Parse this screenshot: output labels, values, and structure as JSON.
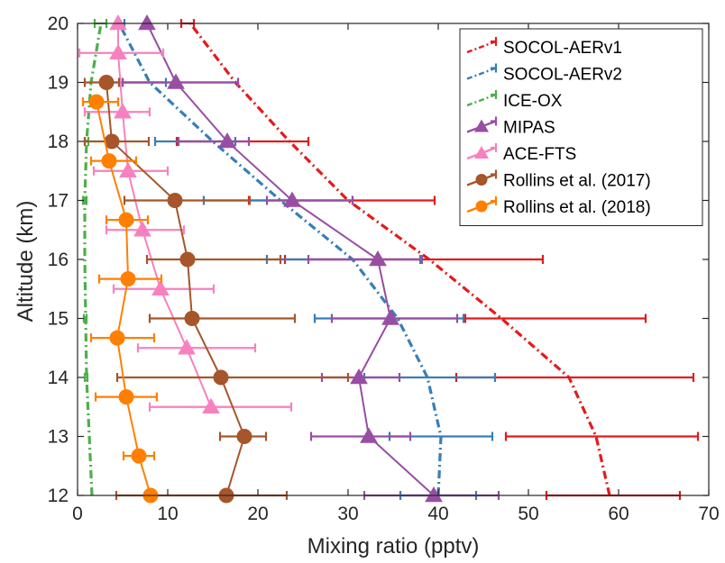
{
  "chart_data": {
    "type": "line",
    "xlabel": "Mixing ratio (pptv)",
    "ylabel": "Altitude (km)",
    "xlim": [
      0,
      70
    ],
    "ylim": [
      12,
      20
    ],
    "xticks": [
      "0",
      "10",
      "20",
      "30",
      "40",
      "50",
      "60",
      "70"
    ],
    "yticks": [
      "12",
      "13",
      "14",
      "15",
      "16",
      "17",
      "18",
      "19",
      "20"
    ],
    "grid": false,
    "legend_position": "top-right",
    "series": [
      {
        "name": "SOCOL-AERv1",
        "color": "#e41a1c",
        "style": "dashdot",
        "marker": "none",
        "x": [
          59.0,
          57.5,
          54.5,
          47.0,
          39.0,
          30.0,
          23.5,
          17.5,
          12.5
        ],
        "y": [
          12,
          13,
          14,
          15,
          16,
          17,
          18,
          19,
          20
        ],
        "errors": [
          {
            "y": 12,
            "min": 52.0,
            "max": 66.8
          },
          {
            "y": 13,
            "min": 47.5,
            "max": 68.8
          },
          {
            "y": 14,
            "min": 42.0,
            "max": 68.3
          },
          {
            "y": 15,
            "min": 43.0,
            "max": 63.0
          },
          {
            "y": 16,
            "min": 23.0,
            "max": 51.6
          },
          {
            "y": 17,
            "min": 19.0,
            "max": 39.6
          },
          {
            "y": 18,
            "min": 11.0,
            "max": 25.6
          },
          {
            "y": 19,
            "min": 5.0,
            "max": 17.8
          },
          {
            "y": 20,
            "min": 11.5,
            "max": 12.9
          }
        ]
      },
      {
        "name": "SOCOL-AERv2",
        "color": "#377eb8",
        "style": "dashdot",
        "marker": "none",
        "x": [
          40.0,
          40.3,
          38.8,
          35.5,
          30.5,
          22.5,
          15.0,
          8.0,
          4.6
        ],
        "y": [
          12,
          13,
          14,
          15,
          16,
          17,
          18,
          19,
          20
        ],
        "errors": [
          {
            "y": 12,
            "min": 35.8,
            "max": 44.2
          },
          {
            "y": 13,
            "min": 34.6,
            "max": 46.0
          },
          {
            "y": 14,
            "min": 31.8,
            "max": 46.3
          },
          {
            "y": 15,
            "min": 26.3,
            "max": 42.8
          },
          {
            "y": 16,
            "min": 21.0,
            "max": 38.0
          },
          {
            "y": 17,
            "min": 14.0,
            "max": 30.5
          },
          {
            "y": 18,
            "min": 8.6,
            "max": 17.5
          },
          {
            "y": 19,
            "min": 3.6,
            "max": 9.8
          },
          {
            "y": 20,
            "min": 4.3,
            "max": 5.2
          }
        ]
      },
      {
        "name": "ICE-OX",
        "color": "#4daf4a",
        "style": "dashdot",
        "marker": "none",
        "x": [
          1.6,
          1.3,
          1.0,
          0.9,
          0.8,
          0.8,
          1.0,
          1.5,
          2.6
        ],
        "y": [
          12,
          13,
          14,
          15,
          16,
          17,
          18,
          19,
          20
        ],
        "errors": [
          {
            "y": 14,
            "min": 0.8,
            "max": 1.1
          },
          {
            "y": 15,
            "min": 0.7,
            "max": 1.0
          },
          {
            "y": 17,
            "min": 0.6,
            "max": 1.0
          },
          {
            "y": 18,
            "min": 0.8,
            "max": 1.2
          },
          {
            "y": 20,
            "min": 1.9,
            "max": 3.2
          }
        ]
      },
      {
        "name": "MIPAS",
        "color": "#984ea3",
        "style": "solid",
        "marker": "triangle",
        "x": [
          39.5,
          32.3,
          31.2,
          34.7,
          33.3,
          23.8,
          16.6,
          10.9,
          7.7
        ],
        "y": [
          12,
          13,
          14,
          15,
          16,
          17,
          18,
          19,
          20
        ],
        "errors": [
          {
            "y": 12,
            "min": 31.8,
            "max": 46.7
          },
          {
            "y": 13,
            "min": 25.9,
            "max": 36.9
          },
          {
            "y": 14,
            "min": 27.1,
            "max": 35.7
          },
          {
            "y": 15,
            "min": 28.2,
            "max": 42.1
          },
          {
            "y": 16,
            "min": 25.6,
            "max": 38.2
          },
          {
            "y": 17,
            "min": 21.0,
            "max": 30.5
          },
          {
            "y": 18,
            "min": 11.2,
            "max": 19.0
          },
          {
            "y": 19,
            "min": 5.0,
            "max": 17.8
          }
        ]
      },
      {
        "name": "ACE-FTS",
        "color": "#f781bf",
        "style": "solid",
        "marker": "triangle",
        "x": [
          14.8,
          12.1,
          9.2,
          7.2,
          5.6,
          5.0,
          4.5,
          4.5
        ],
        "y": [
          13.5,
          14.5,
          15.5,
          16.5,
          17.5,
          18.5,
          19.5,
          20
        ],
        "errors": [
          {
            "y": 13.5,
            "min": 8.0,
            "max": 23.7
          },
          {
            "y": 14.5,
            "min": 6.7,
            "max": 19.7
          },
          {
            "y": 15.5,
            "min": 4.0,
            "max": 15.1
          },
          {
            "y": 16.5,
            "min": 3.2,
            "max": 11.8
          },
          {
            "y": 17.5,
            "min": 1.8,
            "max": 10.0
          },
          {
            "y": 18.5,
            "min": 0.8,
            "max": 8.0
          },
          {
            "y": 19.5,
            "min": 0.2,
            "max": 9.5
          }
        ]
      },
      {
        "name": "Rollins et al. (2017)",
        "color": "#a6562a",
        "style": "solid",
        "marker": "circle",
        "x": [
          16.5,
          18.5,
          15.9,
          12.7,
          12.2,
          10.8,
          3.8,
          3.2
        ],
        "y": [
          12,
          13,
          14,
          15,
          16,
          17,
          18,
          19
        ],
        "errors": [
          {
            "y": 12,
            "min": 4.3,
            "max": 23.2
          },
          {
            "y": 13,
            "min": 15.8,
            "max": 20.9
          },
          {
            "y": 14,
            "min": 4.4,
            "max": 30.0
          },
          {
            "y": 15,
            "min": 8.0,
            "max": 24.1
          },
          {
            "y": 16,
            "min": 7.7,
            "max": 22.5
          },
          {
            "y": 17,
            "min": 5.2,
            "max": 19.1
          },
          {
            "y": 18,
            "min": 0.8,
            "max": 7.9
          },
          {
            "y": 19,
            "min": 0.8,
            "max": 4.6
          }
        ]
      },
      {
        "name": "Rollins et al. (2018)",
        "color": "#ff7f00",
        "style": "solid",
        "marker": "circle",
        "x": [
          8.1,
          6.8,
          5.4,
          4.4,
          5.6,
          5.4,
          3.5,
          2.1
        ],
        "y": [
          12,
          12.67,
          13.67,
          14.67,
          15.67,
          16.67,
          17.67,
          18.67
        ],
        "errors": [
          {
            "y": 12.67,
            "min": 5.1,
            "max": 8.5
          },
          {
            "y": 13.67,
            "min": 2.0,
            "max": 8.8
          },
          {
            "y": 14.67,
            "min": 1.5,
            "max": 8.5
          },
          {
            "y": 15.67,
            "min": 2.4,
            "max": 9.3
          },
          {
            "y": 16.67,
            "min": 3.2,
            "max": 7.8
          },
          {
            "y": 17.67,
            "min": 1.5,
            "max": 6.5
          },
          {
            "y": 18.67,
            "min": 0.6,
            "max": 4.5
          }
        ]
      }
    ]
  }
}
